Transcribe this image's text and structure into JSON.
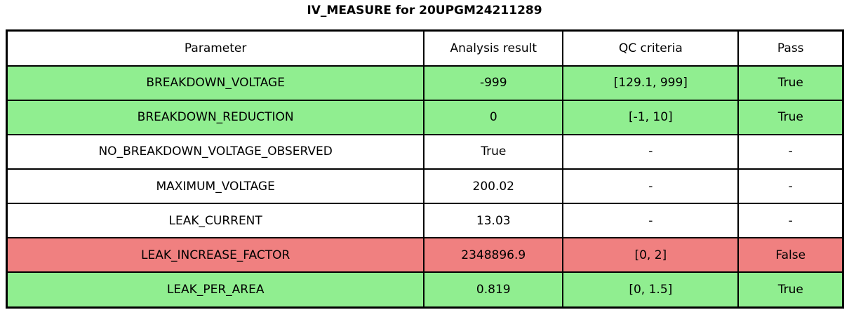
{
  "title": "IV_MEASURE for 20UPGM24211289",
  "colors": {
    "pass": "#90ee90",
    "fail": "#f08080",
    "neutral": "#ffffff",
    "border": "#000000",
    "text": "#000000"
  },
  "chart_data": {
    "type": "table",
    "title": "IV_MEASURE for 20UPGM24211289",
    "columns": [
      "Parameter",
      "Analysis result",
      "QC criteria",
      "Pass"
    ],
    "rows": [
      {
        "cells": [
          "BREAKDOWN_VOLTAGE",
          "-999",
          "[129.1, 999]",
          "True"
        ],
        "status": "pass"
      },
      {
        "cells": [
          "BREAKDOWN_REDUCTION",
          "0",
          "[-1, 10]",
          "True"
        ],
        "status": "pass"
      },
      {
        "cells": [
          "NO_BREAKDOWN_VOLTAGE_OBSERVED",
          "True",
          "-",
          "-"
        ],
        "status": "neutral"
      },
      {
        "cells": [
          "MAXIMUM_VOLTAGE",
          "200.02",
          "-",
          "-"
        ],
        "status": "neutral"
      },
      {
        "cells": [
          "LEAK_CURRENT",
          "13.03",
          "-",
          "-"
        ],
        "status": "neutral"
      },
      {
        "cells": [
          "LEAK_INCREASE_FACTOR",
          "2348896.9",
          "[0, 2]",
          "False"
        ],
        "status": "fail"
      },
      {
        "cells": [
          "LEAK_PER_AREA",
          "0.819",
          "[0, 1.5]",
          "True"
        ],
        "status": "pass"
      }
    ]
  }
}
